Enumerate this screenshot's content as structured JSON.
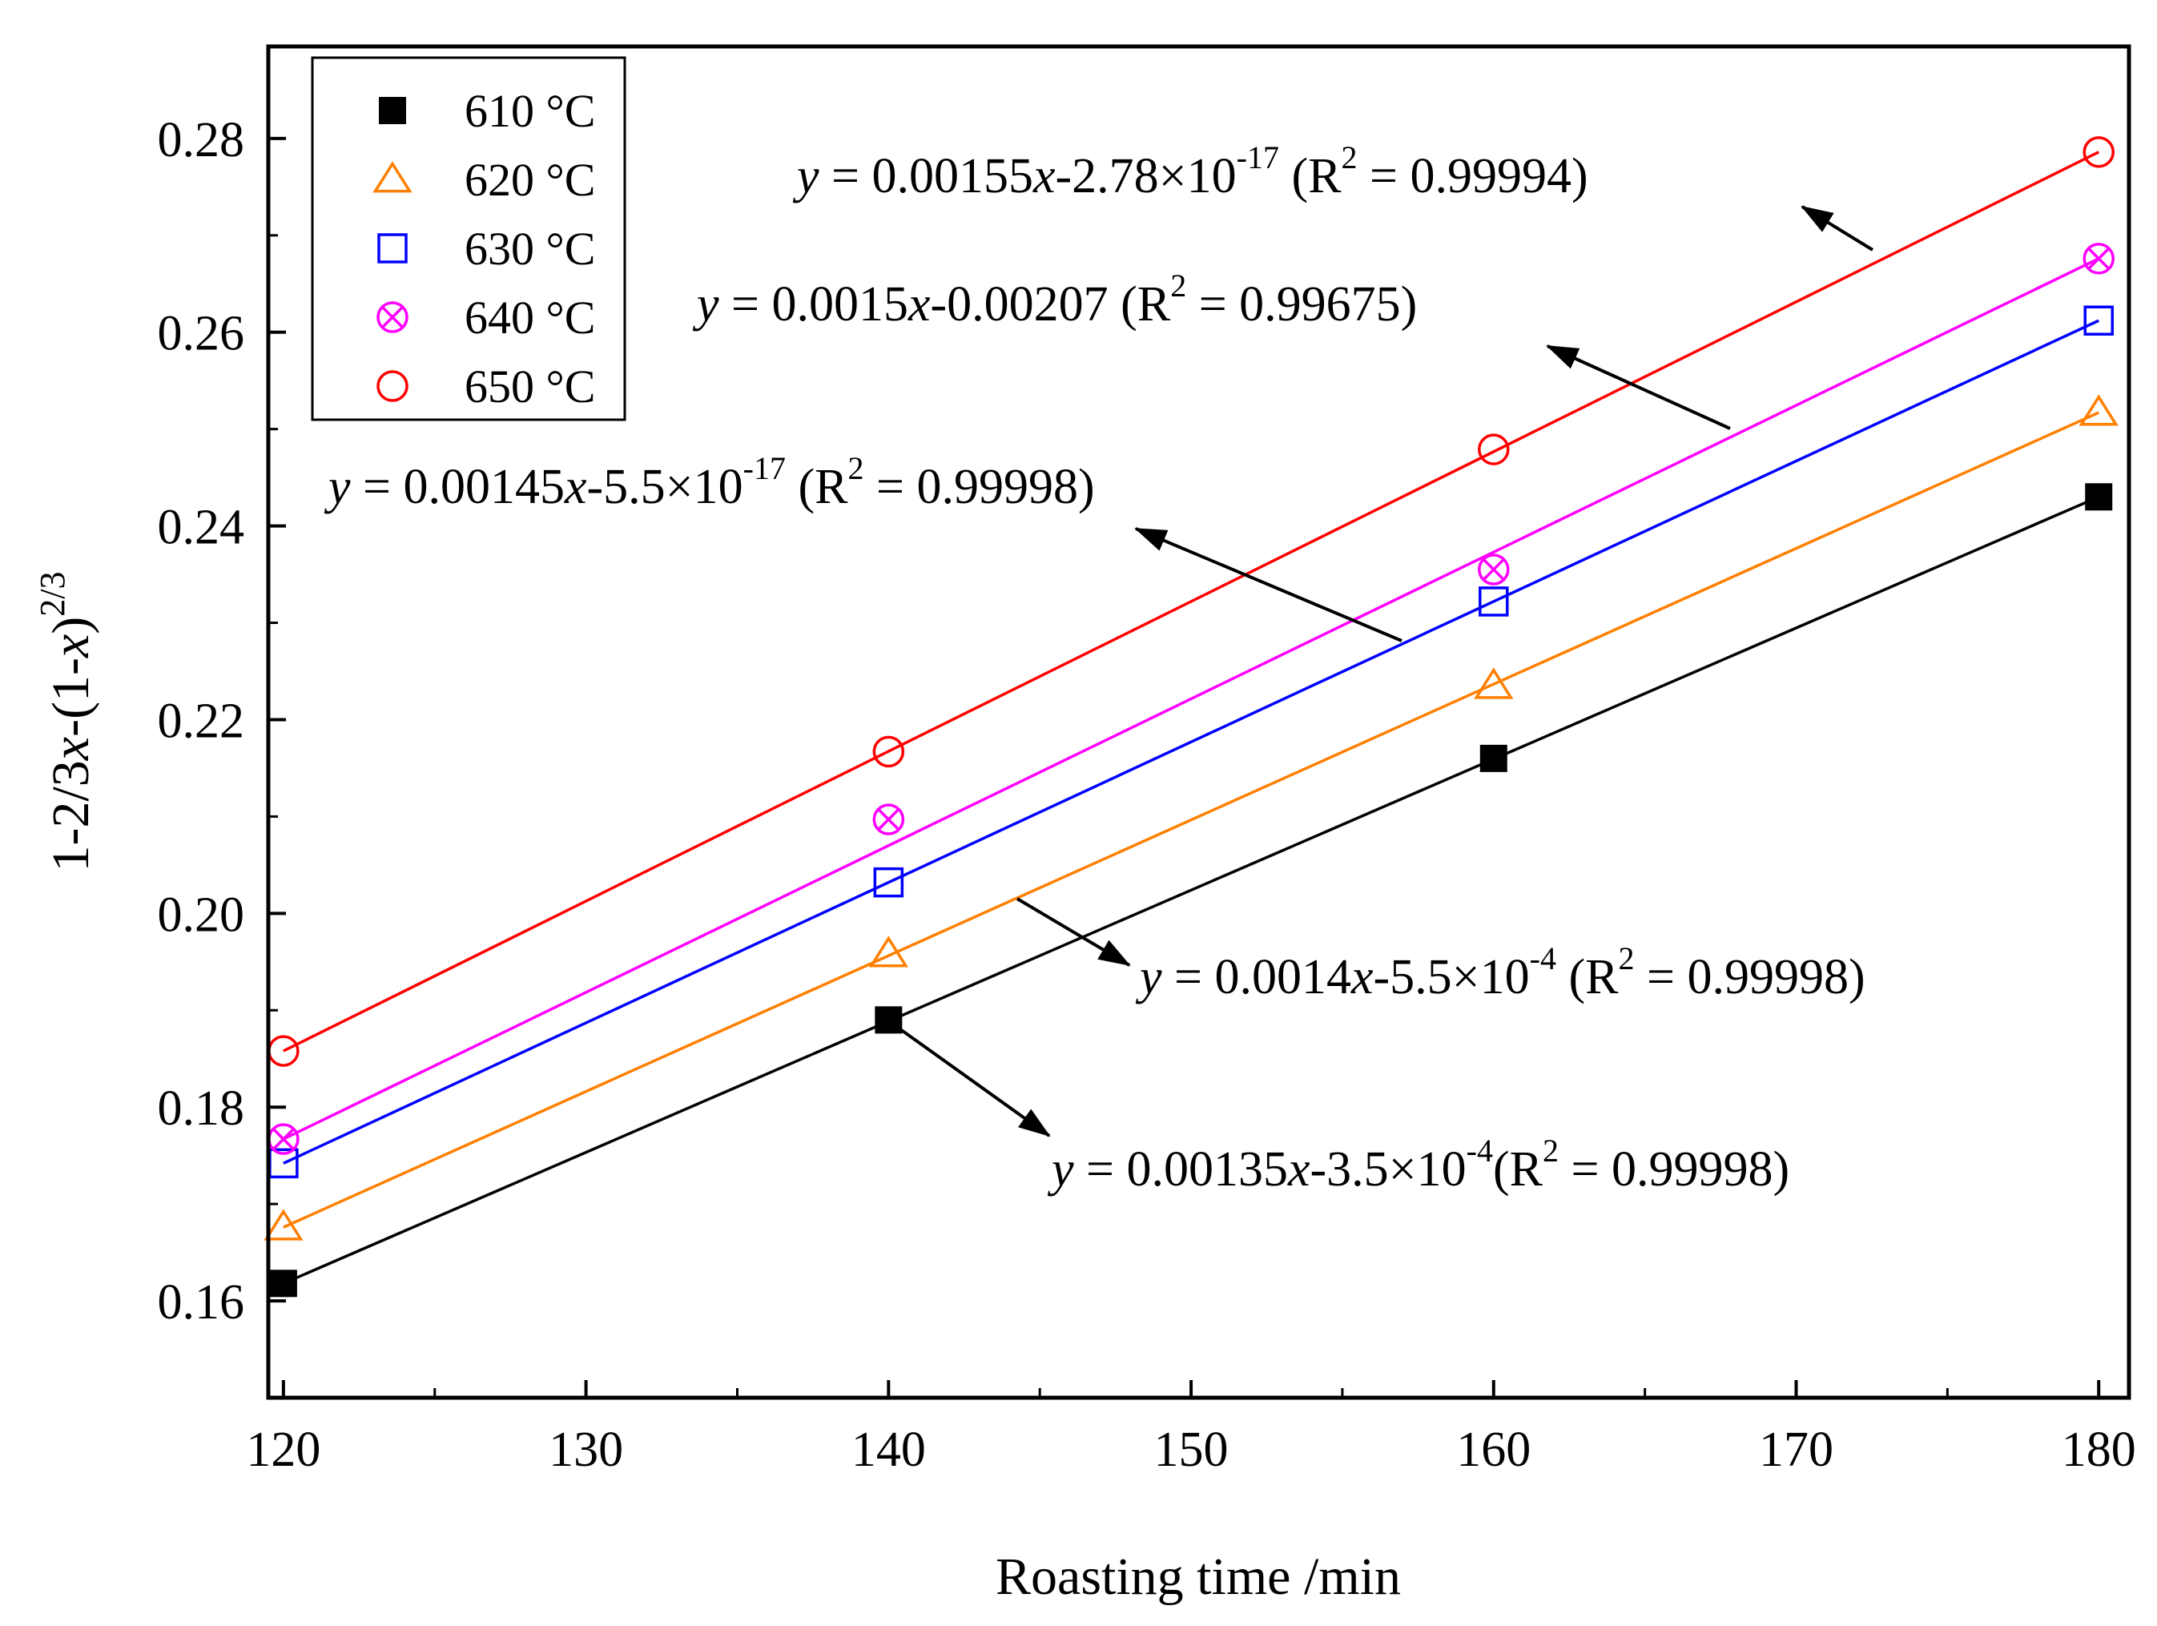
{
  "chart_data": {
    "type": "scatter",
    "title": "",
    "xlabel": "Roasting time /min",
    "ylabel_parts": {
      "base": "1-2/3",
      "x1": "x",
      "mid": "-(1-",
      "x2": "x",
      "close": ")",
      "exp": "2/3"
    },
    "xlim": [
      119.5,
      181
    ],
    "ylim": [
      0.15,
      0.2895
    ],
    "x_ticks": [
      120,
      130,
      140,
      150,
      160,
      170,
      180
    ],
    "x_tick_labels": [
      "120",
      "130",
      "140",
      "150",
      "160",
      "170",
      "180"
    ],
    "y_ticks": [
      0.16,
      0.18,
      0.2,
      0.22,
      0.24,
      0.26,
      0.28
    ],
    "y_tick_labels": [
      "0.16",
      "0.18",
      "0.20",
      "0.22",
      "0.24",
      "0.26",
      "0.28"
    ],
    "x": [
      120,
      140,
      160,
      180
    ],
    "legend_position": "top-left",
    "series": [
      {
        "name": "610 °C",
        "marker": "filled-square",
        "color": "#000000",
        "values": [
          0.1618,
          0.189,
          0.216,
          0.243
        ],
        "fit": {
          "slope": 0.00135,
          "intercept": -0.00035
        }
      },
      {
        "name": "620 °C",
        "marker": "open-triangle",
        "color": "#FF7F00",
        "values": [
          0.1676,
          0.1958,
          0.2235,
          0.2517
        ],
        "fit": {
          "slope": 0.0014,
          "intercept": -0.00055
        }
      },
      {
        "name": "630 °C",
        "marker": "open-square",
        "color": "#0000FF",
        "values": [
          0.1742,
          0.2032,
          0.2322,
          0.2612
        ],
        "fit": {
          "slope": 0.00145,
          "intercept": 0.0
        }
      },
      {
        "name": "640 °C",
        "marker": "crossed-circle",
        "color": "#FF00FF",
        "values": [
          0.1767,
          0.2097,
          0.2355,
          0.2676
        ],
        "fit": {
          "slope": 0.0015,
          "intercept": -0.00207
        }
      },
      {
        "name": "650 °C",
        "marker": "open-circle",
        "color": "#FF0000",
        "values": [
          0.1858,
          0.2167,
          0.2479,
          0.2786
        ],
        "fit": {
          "slope": 0.00155,
          "intercept": 0.0
        }
      }
    ],
    "annotations": [
      {
        "id": "eq-650",
        "text_parts": [
          "y",
          " = 0.00155",
          "x",
          "-2.78×10",
          "-17",
          " (R",
          "2",
          " = 0.99994)"
        ]
      },
      {
        "id": "eq-640",
        "text_parts": [
          "y",
          " = 0.0015",
          "x",
          "-0.00207 (R",
          "2",
          " = 0.99675)"
        ]
      },
      {
        "id": "eq-630",
        "text_parts": [
          "y",
          " = 0.00145",
          "x",
          "-5.5×10",
          "-17",
          " (R",
          "2",
          " = 0.99998)"
        ]
      },
      {
        "id": "eq-620",
        "text_parts": [
          "y",
          " = 0.0014",
          "x",
          "-5.5×10",
          "-4",
          " (R",
          "2",
          " = 0.99998)"
        ]
      },
      {
        "id": "eq-610",
        "text_parts": [
          "y",
          " = 0.00135",
          "x",
          "-3.5×10",
          "-4",
          "(R",
          "2",
          " = 0.99998)"
        ]
      }
    ]
  }
}
